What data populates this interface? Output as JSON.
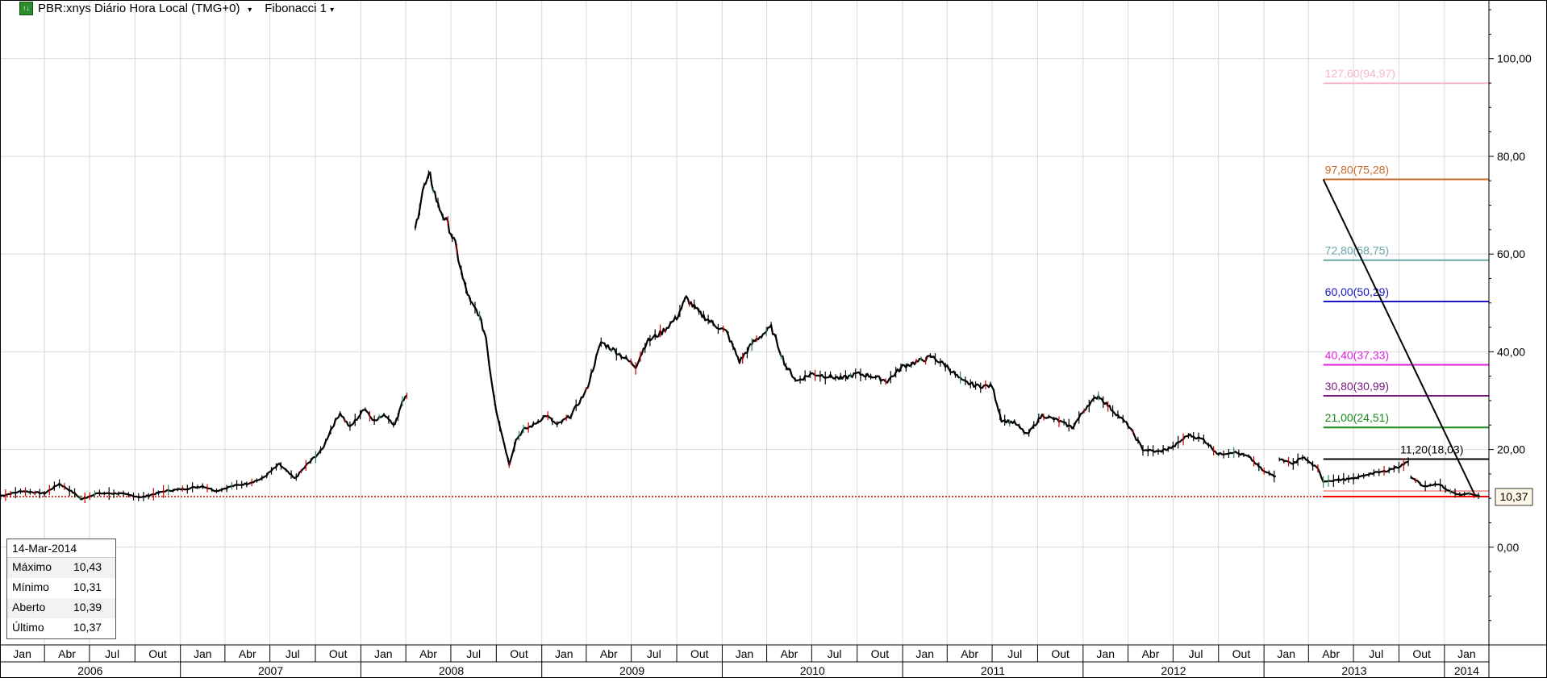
{
  "header": {
    "icon": "chart-icon",
    "symbol_label": "PBR:xnys Diário Hora Local (TMG+0)",
    "study_label": "Fibonacci 1"
  },
  "info_box": {
    "date": "14-Mar-2014",
    "rows": [
      {
        "label": "Máximo",
        "value": "10,43"
      },
      {
        "label": "Mínimo",
        "value": "10,31"
      },
      {
        "label": "Aberto",
        "value": "10,39"
      },
      {
        "label": "Último",
        "value": "10,37"
      }
    ]
  },
  "chart_data": {
    "type": "line",
    "ylim": [
      -20,
      112
    ],
    "y_ticks": [
      {
        "value": 100,
        "label": "100,00"
      },
      {
        "value": 80,
        "label": "80,00"
      },
      {
        "value": 60,
        "label": "60,00"
      },
      {
        "value": 40,
        "label": "40,00"
      },
      {
        "value": 20,
        "label": "20,00"
      },
      {
        "value": 0,
        "label": "0,00"
      }
    ],
    "x_range": [
      "2006-01-01",
      "2014-04-01"
    ],
    "months": [
      "Jan",
      "Abr",
      "Jul",
      "Out",
      "Jan",
      "Abr",
      "Jul",
      "Out",
      "Jan",
      "Abr",
      "Jul",
      "Out",
      "Jan",
      "Abr",
      "Jul",
      "Out",
      "Jan",
      "Abr",
      "Jul",
      "Out",
      "Jan",
      "Abr",
      "Jul",
      "Out",
      "Jan",
      "Abr",
      "Jul",
      "Out",
      "Jan",
      "Abr",
      "Jul",
      "Out",
      "Jan"
    ],
    "month_dates": [
      "2006-01-01",
      "2006-04-01",
      "2006-07-01",
      "2006-10-01",
      "2007-01-01",
      "2007-04-01",
      "2007-07-01",
      "2007-10-01",
      "2008-01-01",
      "2008-04-01",
      "2008-07-01",
      "2008-10-01",
      "2009-01-01",
      "2009-04-01",
      "2009-07-01",
      "2009-10-01",
      "2010-01-01",
      "2010-04-01",
      "2010-07-01",
      "2010-10-01",
      "2011-01-01",
      "2011-04-01",
      "2011-07-01",
      "2011-10-01",
      "2012-01-01",
      "2012-04-01",
      "2012-07-01",
      "2012-10-01",
      "2013-01-01",
      "2013-04-01",
      "2013-07-01",
      "2013-10-01",
      "2014-01-01"
    ],
    "years": [
      {
        "label": "2006",
        "start": "2006-01-01",
        "end": "2007-01-01"
      },
      {
        "label": "2007",
        "start": "2007-01-01",
        "end": "2008-01-01"
      },
      {
        "label": "2008",
        "start": "2008-01-01",
        "end": "2009-01-01"
      },
      {
        "label": "2009",
        "start": "2009-01-01",
        "end": "2010-01-01"
      },
      {
        "label": "2010",
        "start": "2010-01-01",
        "end": "2011-01-01"
      },
      {
        "label": "2011",
        "start": "2011-01-01",
        "end": "2012-01-01"
      },
      {
        "label": "2012",
        "start": "2012-01-01",
        "end": "2013-01-01"
      },
      {
        "label": "2013",
        "start": "2013-01-01",
        "end": "2014-01-01"
      },
      {
        "label": "2014",
        "start": "2014-01-01",
        "end": "2014-04-01"
      }
    ],
    "series": [
      {
        "segments": [
          [
            [
              "2006-01-02",
              10.5
            ],
            [
              "2006-02-15",
              11.5
            ],
            [
              "2006-04-01",
              11.0
            ],
            [
              "2006-05-01",
              13.0
            ],
            [
              "2006-06-01",
              11.0
            ],
            [
              "2006-06-15",
              9.8
            ],
            [
              "2006-07-15",
              11.0
            ],
            [
              "2006-09-01",
              11.0
            ],
            [
              "2006-10-15",
              10.2
            ],
            [
              "2006-12-01",
              11.5
            ],
            [
              "2007-01-15",
              12.0
            ],
            [
              "2007-02-15",
              12.5
            ],
            [
              "2007-03-15",
              11.5
            ],
            [
              "2007-04-15",
              12.5
            ],
            [
              "2007-05-15",
              13.0
            ],
            [
              "2007-06-15",
              14.0
            ],
            [
              "2007-07-20",
              17.0
            ],
            [
              "2007-08-20",
              14.0
            ],
            [
              "2007-09-15",
              17.0
            ],
            [
              "2007-10-15",
              20.0
            ],
            [
              "2007-11-01",
              24.0
            ],
            [
              "2007-11-20",
              27.5
            ],
            [
              "2007-12-10",
              24.5
            ],
            [
              "2008-01-10",
              28.5
            ],
            [
              "2008-01-25",
              26.0
            ],
            [
              "2008-02-20",
              27.0
            ],
            [
              "2008-03-10",
              25.0
            ],
            [
              "2008-03-25",
              30.0
            ],
            [
              "2008-04-03",
              31.0
            ]
          ],
          [
            [
              "2008-04-20",
              65.0
            ],
            [
              "2008-05-05",
              73.0
            ],
            [
              "2008-05-20",
              76.0
            ],
            [
              "2008-06-05",
              70.0
            ],
            [
              "2008-06-25",
              66.0
            ],
            [
              "2008-07-10",
              62.0
            ],
            [
              "2008-07-25",
              55.0
            ],
            [
              "2008-08-10",
              50.0
            ],
            [
              "2008-08-25",
              48.0
            ],
            [
              "2008-09-10",
              43.0
            ],
            [
              "2008-09-20",
              35.0
            ],
            [
              "2008-10-01",
              28.0
            ],
            [
              "2008-10-15",
              22.0
            ],
            [
              "2008-10-27",
              17.0
            ],
            [
              "2008-11-10",
              22.0
            ],
            [
              "2008-11-25",
              24.0
            ],
            [
              "2008-12-15",
              25.0
            ],
            [
              "2009-01-10",
              27.0
            ],
            [
              "2009-02-01",
              25.0
            ],
            [
              "2009-03-01",
              27.0
            ],
            [
              "2009-04-01",
              32.0
            ],
            [
              "2009-05-01",
              42.0
            ],
            [
              "2009-06-01",
              40.0
            ],
            [
              "2009-07-10",
              37.0
            ],
            [
              "2009-08-01",
              42.0
            ],
            [
              "2009-09-01",
              44.0
            ],
            [
              "2009-10-01",
              47.0
            ],
            [
              "2009-10-20",
              51.0
            ],
            [
              "2009-11-15",
              48.0
            ],
            [
              "2009-12-10",
              46.0
            ],
            [
              "2010-01-10",
              44.0
            ],
            [
              "2010-02-05",
              38.0
            ],
            [
              "2010-03-05",
              42.0
            ],
            [
              "2010-04-10",
              45.0
            ],
            [
              "2010-05-10",
              37.0
            ],
            [
              "2010-06-01",
              34.0
            ],
            [
              "2010-07-01",
              35.5
            ],
            [
              "2010-08-01",
              35.0
            ],
            [
              "2010-09-01",
              34.5
            ],
            [
              "2010-10-01",
              35.5
            ],
            [
              "2010-11-01",
              35.0
            ],
            [
              "2010-12-01",
              34.0
            ],
            [
              "2011-01-01",
              37.0
            ],
            [
              "2011-02-01",
              38.0
            ],
            [
              "2011-03-01",
              39.0
            ],
            [
              "2011-04-01",
              37.0
            ],
            [
              "2011-05-01",
              34.0
            ],
            [
              "2011-06-01",
              33.0
            ],
            [
              "2011-07-01",
              33.0
            ],
            [
              "2011-07-20",
              26.0
            ],
            [
              "2011-08-15",
              25.5
            ],
            [
              "2011-09-10",
              23.0
            ],
            [
              "2011-10-10",
              27.0
            ],
            [
              "2011-11-10",
              26.0
            ],
            [
              "2011-12-10",
              24.5
            ],
            [
              "2012-01-10",
              29.0
            ],
            [
              "2012-02-01",
              31.0
            ],
            [
              "2012-03-01",
              28.0
            ],
            [
              "2012-04-01",
              25.0
            ],
            [
              "2012-05-01",
              20.0
            ],
            [
              "2012-06-01",
              19.5
            ],
            [
              "2012-07-01",
              20.5
            ],
            [
              "2012-08-01",
              23.0
            ],
            [
              "2012-09-01",
              22.0
            ],
            [
              "2012-10-01",
              19.0
            ],
            [
              "2012-11-01",
              19.5
            ],
            [
              "2012-12-01",
              18.5
            ],
            [
              "2013-01-01",
              15.5
            ],
            [
              "2013-01-25",
              14.5
            ]
          ],
          [
            [
              "2013-02-01",
              18.0
            ],
            [
              "2013-03-01",
              17.0
            ],
            [
              "2013-03-20",
              18.5
            ],
            [
              "2013-04-20",
              16.0
            ],
            [
              "2013-05-01",
              13.5
            ],
            [
              "2013-06-01",
              13.8
            ],
            [
              "2013-07-01",
              14.0
            ],
            [
              "2013-08-01",
              15.0
            ],
            [
              "2013-09-01",
              15.5
            ],
            [
              "2013-10-01",
              16.5
            ],
            [
              "2013-10-20",
              17.5
            ]
          ],
          [
            [
              "2013-10-25",
              14.5
            ],
            [
              "2013-11-20",
              12.5
            ],
            [
              "2013-12-20",
              13.0
            ],
            [
              "2014-01-10",
              11.5
            ],
            [
              "2014-02-01",
              10.7
            ],
            [
              "2014-02-20",
              10.9
            ],
            [
              "2014-03-14",
              10.37
            ]
          ]
        ]
      }
    ],
    "last_price": {
      "value": 10.37,
      "label": "10,37",
      "color": "#cc0000"
    },
    "fib_trendline": {
      "from": [
        "2013-05-01",
        75.28
      ],
      "to": [
        "2014-03-05",
        10.37
      ],
      "color": "#000000"
    },
    "fib_levels": [
      {
        "pct": "127,60",
        "price": "94,97",
        "value": 94.97,
        "color": "#f5b8c5"
      },
      {
        "pct": "97,80",
        "price": "75,28",
        "value": 75.28,
        "color": "#c8692a"
      },
      {
        "pct": "72,80",
        "price": "58,75",
        "value": 58.75,
        "color": "#6aa7a9"
      },
      {
        "pct": "60,00",
        "price": "50,29",
        "value": 50.29,
        "color": "#1818c8"
      },
      {
        "pct": "40,40",
        "price": "37,33",
        "value": 37.33,
        "color": "#e21ee2"
      },
      {
        "pct": "30,80",
        "price": "30,99",
        "value": 30.99,
        "color": "#7a1a80"
      },
      {
        "pct": "21,00",
        "price": "24,51",
        "value": 24.51,
        "color": "#1a8a1a"
      },
      {
        "pct": "11,20",
        "price": "18,03",
        "value": 18.03,
        "color": "#000000"
      },
      {
        "pct": "",
        "price": "",
        "value": 11.5,
        "color": "#f0a0a0"
      },
      {
        "pct": "",
        "price": "",
        "value": 10.37,
        "color": "#ff0000"
      }
    ],
    "fib_start": "2013-05-01",
    "colors": {
      "grid": "#d9d9d9",
      "price": "#000000",
      "down_candle": "#cc0000",
      "up_candle": "#2e8b57"
    }
  }
}
